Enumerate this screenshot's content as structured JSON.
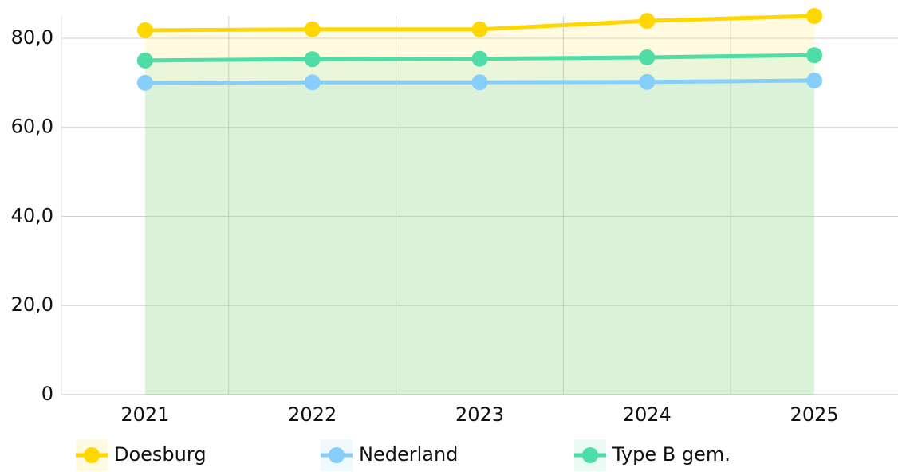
{
  "chart_data": {
    "type": "line",
    "area": true,
    "grid": true,
    "categories": [
      "2021",
      "2022",
      "2023",
      "2024",
      "2025"
    ],
    "series": [
      {
        "name": "Doesburg",
        "color": "#ffd700",
        "values": [
          81.8,
          82.0,
          82.0,
          83.9,
          85.0
        ]
      },
      {
        "name": "Nederland",
        "color": "#87cefa",
        "values": [
          70.0,
          70.1,
          70.1,
          70.2,
          70.5
        ]
      },
      {
        "name": "Type B gem.",
        "color": "#50dca6",
        "values": [
          75.0,
          75.3,
          75.4,
          75.7,
          76.2
        ]
      }
    ],
    "ylim": [
      0,
      85
    ],
    "yticks": [
      0,
      {
        "value": 20,
        "label": "20,0"
      },
      {
        "value": 40,
        "label": "40,0"
      },
      {
        "value": 60,
        "label": "60,0"
      },
      {
        "value": 80,
        "label": "80,0"
      }
    ],
    "legend": "bottom"
  }
}
